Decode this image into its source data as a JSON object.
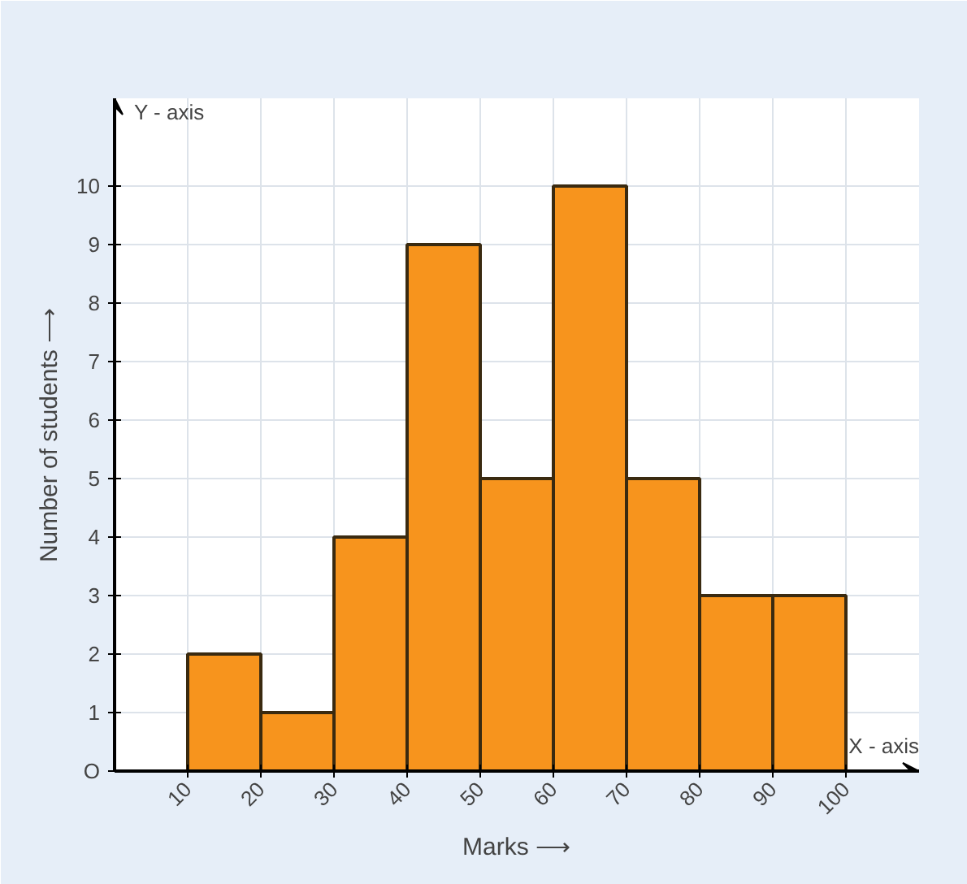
{
  "chart_data": {
    "type": "histogram",
    "xlabel": "Marks ⟶",
    "ylabel": "Number of students ⟶",
    "bins": [
      10,
      20,
      30,
      40,
      50,
      60,
      70,
      80,
      90,
      100
    ],
    "values": [
      2,
      1,
      4,
      9,
      5,
      10,
      5,
      3,
      3
    ],
    "color": "#f7941d",
    "xlim": [
      0,
      110
    ],
    "ylim": [
      0,
      11.5
    ],
    "xticks": [
      10,
      20,
      30,
      40,
      50,
      60,
      70,
      80,
      90,
      100
    ],
    "yticks": [
      {
        "value": 0,
        "label": "O"
      },
      1,
      2,
      3,
      4,
      5,
      6,
      7,
      8,
      9,
      10
    ],
    "grid": true,
    "annotations": [
      "Y - axis",
      "X - axis"
    ]
  }
}
